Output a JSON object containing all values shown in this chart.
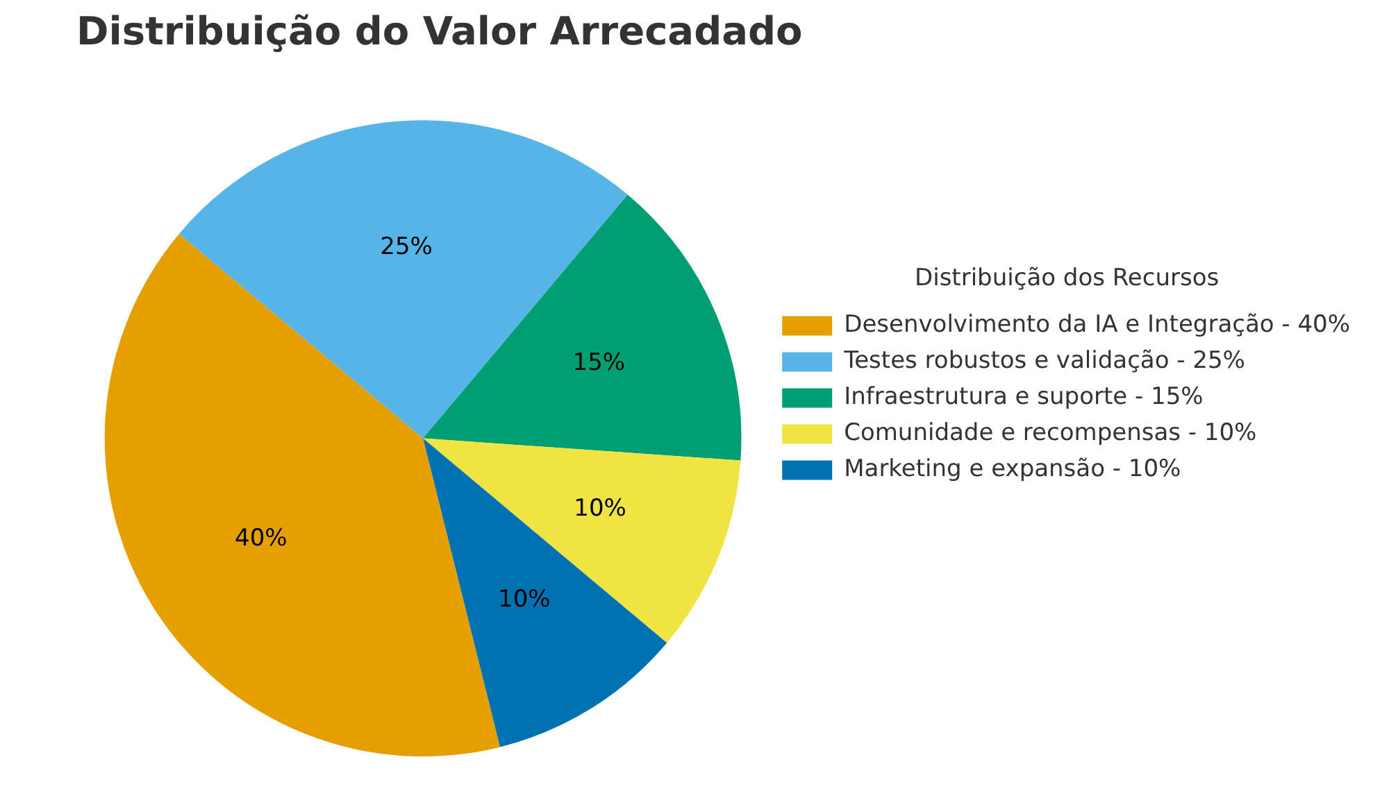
{
  "chart_data": {
    "type": "pie",
    "title": "Distribuição do Valor Arrecadado",
    "legend_title": "Distribuição dos Recursos",
    "legend": "right",
    "categories": [
      "Desenvolvimento da IA e Integração - 40%",
      "Testes robustos e validação - 25%",
      "Infraestrutura e suporte - 15%",
      "Comunidade e recompensas - 10%",
      "Marketing e expansão - 10%"
    ],
    "values": [
      40,
      25,
      15,
      10,
      10
    ],
    "colors": [
      "#e69f00",
      "#56b4e9",
      "#009e73",
      "#f0e442",
      "#0072b2"
    ],
    "value_labels": [
      "40%",
      "25%",
      "15%",
      "10%",
      "10%"
    ]
  }
}
